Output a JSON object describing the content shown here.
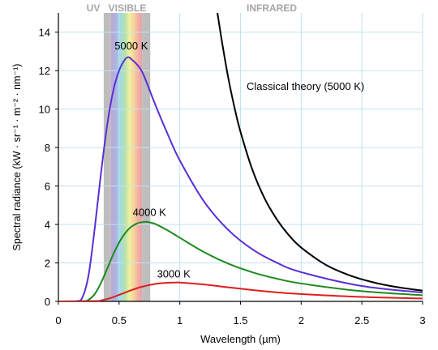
{
  "chart_data": {
    "type": "line",
    "title": "",
    "xlabel": "Wavelength (µm)",
    "ylabel": "Spectral radiance (kW · sr⁻¹ · m⁻² · nm⁻¹)",
    "xlim": [
      0,
      3
    ],
    "ylim": [
      0,
      15
    ],
    "x_ticks": [
      0,
      0.5,
      1,
      1.5,
      2,
      2.5,
      3
    ],
    "x_tick_labels": [
      "0",
      "0.5",
      "1",
      "1.5",
      "2",
      "2.5",
      "3"
    ],
    "y_ticks": [
      0,
      2,
      4,
      6,
      8,
      10,
      12,
      14
    ],
    "y_tick_labels": [
      "0",
      "2",
      "4",
      "6",
      "8",
      "10",
      "12",
      "14"
    ],
    "grid": true,
    "regions": [
      {
        "label": "UV",
        "x_range": [
          0,
          0.38
        ]
      },
      {
        "label": "VISIBLE",
        "x_range": [
          0.38,
          0.75
        ]
      },
      {
        "label": "INFRARED",
        "x_range": [
          0.75,
          3
        ]
      }
    ],
    "series": [
      {
        "name": "5000 K",
        "color": "#5a2fd6",
        "x": [
          0.15,
          0.2,
          0.25,
          0.3,
          0.35,
          0.4,
          0.45,
          0.5,
          0.55,
          0.58,
          0.6,
          0.65,
          0.7,
          0.8,
          0.9,
          1.0,
          1.2,
          1.4,
          1.6,
          1.8,
          2.0,
          2.5,
          3.0
        ],
        "y": [
          0.01,
          0.24,
          1.42,
          3.84,
          6.62,
          9.09,
          10.9,
          12.0,
          12.6,
          12.7,
          12.6,
          12.3,
          11.8,
          10.2,
          8.7,
          7.33,
          5.19,
          3.71,
          2.7,
          2.01,
          1.52,
          0.8,
          0.46
        ]
      },
      {
        "name": "4000 K",
        "color": "#1f8a1f",
        "x": [
          0.2,
          0.25,
          0.3,
          0.35,
          0.4,
          0.45,
          0.5,
          0.55,
          0.6,
          0.65,
          0.7,
          0.72,
          0.75,
          0.8,
          0.9,
          1.0,
          1.2,
          1.4,
          1.6,
          1.8,
          2.0,
          2.5,
          3.0
        ],
        "y": [
          0.01,
          0.09,
          0.39,
          0.95,
          1.67,
          2.42,
          3.06,
          3.55,
          3.88,
          4.06,
          4.13,
          4.14,
          4.11,
          4.02,
          3.69,
          3.31,
          2.56,
          1.96,
          1.51,
          1.18,
          0.93,
          0.53,
          0.32
        ]
      },
      {
        "name": "3000 K",
        "color": "#dd1f1f",
        "x": [
          0.3,
          0.35,
          0.4,
          0.45,
          0.5,
          0.55,
          0.6,
          0.65,
          0.7,
          0.8,
          0.9,
          0.97,
          1.0,
          1.2,
          1.4,
          1.6,
          1.8,
          2.0,
          2.5,
          3.0
        ],
        "y": [
          0.02,
          0.05,
          0.12,
          0.22,
          0.34,
          0.46,
          0.58,
          0.69,
          0.78,
          0.91,
          0.97,
          0.98,
          0.98,
          0.88,
          0.73,
          0.59,
          0.47,
          0.38,
          0.23,
          0.15
        ]
      },
      {
        "name": "Classical theory (5000 K)",
        "color": "#000000",
        "x": [
          1.31,
          1.35,
          1.4,
          1.45,
          1.5,
          1.6,
          1.7,
          1.8,
          1.9,
          2.0,
          2.2,
          2.4,
          2.6,
          2.8,
          3.0
        ],
        "y": [
          15.0,
          13.4,
          11.6,
          10.1,
          8.82,
          6.81,
          5.34,
          4.26,
          3.43,
          2.8,
          1.91,
          1.35,
          0.98,
          0.73,
          0.56
        ]
      }
    ],
    "annotations": [
      {
        "text": "5000 K",
        "x": 0.6,
        "y": 13.1
      },
      {
        "text": "4000 K",
        "x": 0.75,
        "y": 4.45
      },
      {
        "text": "3000 K",
        "x": 0.95,
        "y": 1.25
      },
      {
        "text": "Classical theory (5000 K)",
        "x": 1.55,
        "y": 11.0
      }
    ]
  }
}
